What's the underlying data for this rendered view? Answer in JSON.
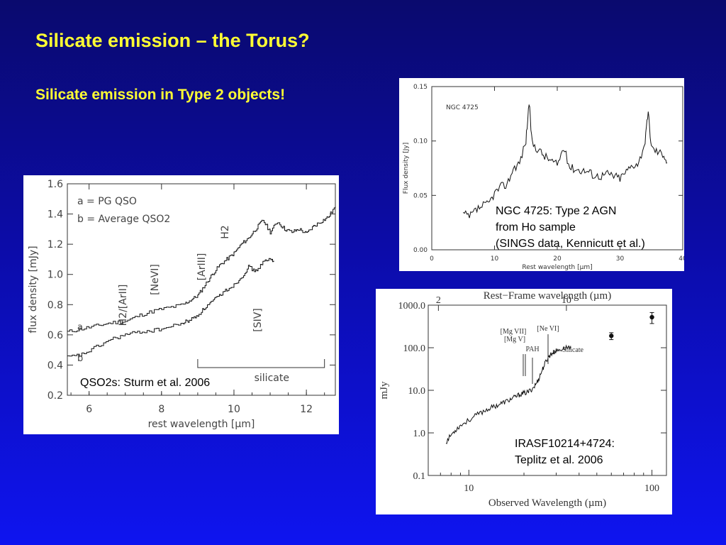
{
  "slide": {
    "title": "Silicate emission – the Torus?",
    "subtitle": "Silicate emission in Type 2 objects!"
  },
  "panels": {
    "qso": {
      "caption": "QSO2s: Sturm et al. 2006",
      "legend_a": "a = PG QSO",
      "legend_b": "b = Average QSO2",
      "line_labels": [
        "H2/[ArII]",
        "[NeVI]",
        "[ArIII]",
        "H2",
        "[SIV]"
      ],
      "band_label": "silicate",
      "curve_a_label": "a",
      "curve_b_label": "b"
    },
    "ngc": {
      "caption_lines": [
        "NGC 4725: Type 2 AGN",
        "from Ho sample",
        "(SINGS data, Kennicutt et al.)"
      ],
      "inset_label": "NGC 4725"
    },
    "iras": {
      "caption_lines": [
        "IRASF10214+4724:",
        "Teplitz et al. 2006"
      ],
      "line_labels": [
        "[Mg VII]",
        "[Mg V]",
        "[Ne VI]",
        "PAH",
        "Silicate"
      ]
    }
  },
  "chart_data": [
    {
      "id": "qso",
      "type": "line",
      "xlabel": "rest wavelength [µm]",
      "ylabel": "flux density [mJy]",
      "xlim": [
        5.4,
        12.8
      ],
      "ylim": [
        0.2,
        1.6
      ],
      "xticks": [
        6,
        8,
        10,
        12
      ],
      "yticks": [
        0.2,
        0.4,
        0.6,
        0.8,
        1.0,
        1.2,
        1.4,
        1.6
      ],
      "series": [
        {
          "name": "a",
          "x": [
            5.4,
            5.8,
            6.2,
            6.6,
            7.0,
            7.4,
            7.8,
            8.2,
            8.6,
            8.8,
            9.0,
            9.2,
            9.4,
            9.6,
            9.8,
            10.0,
            10.2,
            10.4,
            10.6,
            10.8,
            11.0,
            11.2,
            11.4,
            11.6,
            11.8,
            12.0,
            12.2,
            12.4,
            12.6,
            12.8
          ],
          "y": [
            0.62,
            0.64,
            0.66,
            0.68,
            0.69,
            0.73,
            0.76,
            0.78,
            0.8,
            0.83,
            0.86,
            0.93,
            1.0,
            1.06,
            1.1,
            1.14,
            1.2,
            1.24,
            1.3,
            1.36,
            1.28,
            1.35,
            1.3,
            1.28,
            1.3,
            1.27,
            1.32,
            1.35,
            1.38,
            1.45
          ]
        },
        {
          "name": "b",
          "x": [
            5.4,
            5.8,
            6.2,
            6.6,
            7.0,
            7.4,
            7.8,
            8.2,
            8.6,
            8.8,
            9.0,
            9.2,
            9.4,
            9.6,
            9.8,
            10.0,
            10.2,
            10.4,
            10.6,
            10.8,
            11.0,
            11.1
          ],
          "y": [
            0.45,
            0.47,
            0.52,
            0.57,
            0.6,
            0.62,
            0.63,
            0.65,
            0.68,
            0.7,
            0.73,
            0.78,
            0.82,
            0.86,
            0.9,
            0.93,
            0.98,
            1.05,
            1.02,
            1.08,
            1.1,
            1.09
          ]
        }
      ]
    },
    {
      "id": "ngc",
      "type": "line",
      "xlabel": "Rest wavelength [µm]",
      "ylabel": "Flux density [Jy]",
      "xlim": [
        0,
        40
      ],
      "ylim": [
        0.0,
        0.15
      ],
      "xticks": [
        0,
        10,
        20,
        30,
        40
      ],
      "yticks": [
        0.0,
        0.05,
        0.1,
        0.15
      ],
      "series": [
        {
          "name": "NGC 4725",
          "x": [
            5.0,
            6.0,
            7.0,
            8.0,
            9.0,
            10.0,
            11.0,
            12.0,
            13.0,
            14.0,
            15.0,
            15.5,
            16.0,
            17.0,
            18.0,
            19.0,
            20.0,
            21.0,
            22.0,
            23.0,
            24.0,
            25.0,
            26.0,
            27.0,
            28.0,
            29.0,
            30.0,
            31.0,
            32.0,
            33.0,
            34.0,
            34.5,
            35.0,
            36.0,
            37.0,
            37.5
          ],
          "y": [
            0.033,
            0.03,
            0.036,
            0.04,
            0.042,
            0.052,
            0.058,
            0.06,
            0.075,
            0.08,
            0.1,
            0.135,
            0.098,
            0.092,
            0.086,
            0.082,
            0.078,
            0.094,
            0.076,
            0.074,
            0.073,
            0.072,
            0.068,
            0.068,
            0.07,
            0.068,
            0.066,
            0.072,
            0.078,
            0.08,
            0.1,
            0.126,
            0.094,
            0.09,
            0.088,
            0.08
          ]
        }
      ]
    },
    {
      "id": "iras",
      "type": "scatter",
      "xlabel": "Observed Wavelength (µm)",
      "ylabel": "mJy",
      "top_xlabel": "Rest−Frame wavelength (µm)",
      "xscale": "log",
      "yscale": "log",
      "xlim": [
        6,
        120
      ],
      "ylim": [
        0.1,
        1000
      ],
      "xticks": [
        10,
        100
      ],
      "top_xticks": [
        2,
        10
      ],
      "yticks": [
        "0.1",
        "1.0",
        "10.0",
        "100.0",
        "1000.0"
      ],
      "series": [
        {
          "name": "spectrum",
          "x": [
            7.5,
            8.0,
            8.5,
            9.0,
            10.0,
            11.0,
            12.0,
            13.0,
            14.0,
            15.0,
            16.0,
            17.0,
            18.0,
            19.0,
            20.0,
            21.0,
            22.0,
            23.0,
            24.0,
            25.0,
            26.0,
            27.0,
            28.0,
            29.0,
            30.0,
            32.0,
            34.0,
            36.0
          ],
          "y": [
            0.6,
            0.9,
            1.2,
            1.5,
            2.0,
            2.6,
            3.2,
            3.8,
            4.3,
            4.9,
            5.5,
            6.2,
            7.0,
            8.0,
            8.5,
            9.0,
            10.5,
            13.0,
            18.0,
            28.0,
            42.0,
            58.0,
            70.0,
            78.0,
            84.0,
            92.0,
            100.0,
            110.0
          ]
        },
        {
          "name": "photometry",
          "x": [
            60,
            100
          ],
          "y": [
            190,
            520
          ],
          "yerr": [
            35,
            150
          ]
        }
      ]
    }
  ]
}
